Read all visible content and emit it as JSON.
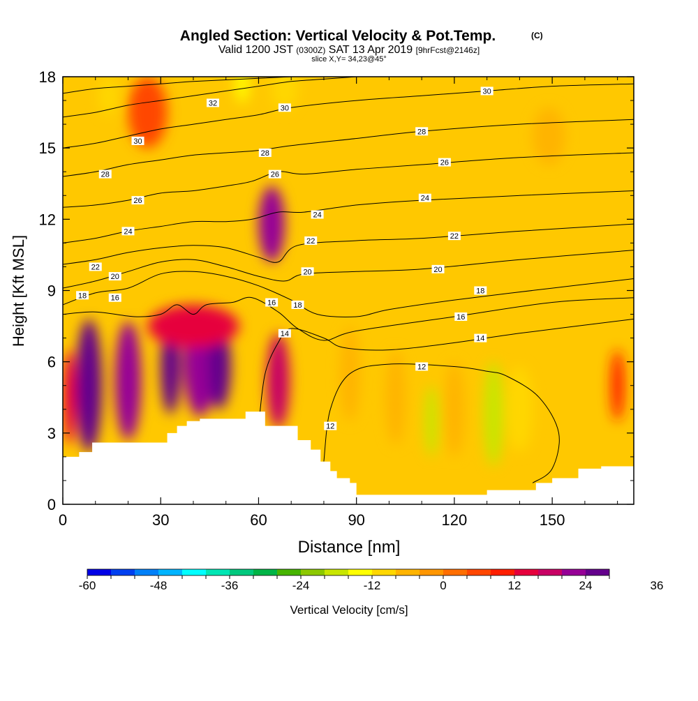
{
  "chart_data": {
    "type": "heatmap",
    "title": "Angled Section: Vertical Velocity & Pot.Temp.",
    "title_units": "(C)",
    "subtitle_parts": [
      "Valid 1200 JST ",
      "(0300Z)",
      " SAT 13 Apr 2019 ",
      "[9hrFcst@2146z]"
    ],
    "slice_label": "slice X,Y= 34,23@45°",
    "xlabel": "Distance [nm]",
    "ylabel": "Height [Kft MSL]",
    "xlim": [
      0,
      175
    ],
    "ylim": [
      0,
      18
    ],
    "xticks": [
      0,
      30,
      60,
      90,
      120,
      150
    ],
    "yticks": [
      0,
      3,
      6,
      9,
      12,
      15,
      18
    ],
    "colorbar": {
      "label": "Vertical Velocity [cm/s]",
      "min": -60,
      "max": 36,
      "step": 4,
      "tick_labels": [
        "-60",
        "-48",
        "-36",
        "-24",
        "-12",
        "0",
        "12",
        "24",
        "36"
      ],
      "colors": [
        "#0000e6",
        "#0040f0",
        "#0080f8",
        "#00b4ff",
        "#00ffff",
        "#00e6b4",
        "#00c87d",
        "#00b446",
        "#46b400",
        "#8cc800",
        "#c8e600",
        "#ffff00",
        "#ffd700",
        "#ffb400",
        "#ff9600",
        "#ff6e00",
        "#ff4600",
        "#ff1e00",
        "#e6003c",
        "#c80064",
        "#960096",
        "#64008c"
      ]
    },
    "terrain": [
      [
        0,
        2.0
      ],
      [
        5,
        2.2
      ],
      [
        9,
        2.6
      ],
      [
        20,
        2.6
      ],
      [
        30,
        2.6
      ],
      [
        32,
        3.0
      ],
      [
        35,
        3.3
      ],
      [
        38,
        3.5
      ],
      [
        42,
        3.6
      ],
      [
        52,
        3.6
      ],
      [
        56,
        3.9
      ],
      [
        61,
        3.9
      ],
      [
        62,
        3.3
      ],
      [
        71,
        3.3
      ],
      [
        72,
        2.7
      ],
      [
        76,
        2.3
      ],
      [
        79,
        1.8
      ],
      [
        82,
        1.4
      ],
      [
        84,
        1.1
      ],
      [
        88,
        0.9
      ],
      [
        90,
        0.4
      ],
      [
        100,
        0.4
      ],
      [
        120,
        0.4
      ],
      [
        130,
        0.6
      ],
      [
        142,
        0.6
      ],
      [
        145,
        0.9
      ],
      [
        150,
        1.1
      ],
      [
        158,
        1.5
      ],
      [
        165,
        1.6
      ],
      [
        175,
        1.6
      ]
    ],
    "vertical_velocity_blobs": [
      {
        "x": 8,
        "y": 5.0,
        "rx": 4,
        "ry": 2.8,
        "value": 24
      },
      {
        "x": 20,
        "y": 5.2,
        "rx": 4,
        "ry": 2.5,
        "value": 20
      },
      {
        "x": 2,
        "y": 4.5,
        "rx": 2,
        "ry": 2.0,
        "value": 12
      },
      {
        "x": 33,
        "y": 5.8,
        "rx": 3,
        "ry": 2.0,
        "value": 34
      },
      {
        "x": 42,
        "y": 6.0,
        "rx": 5,
        "ry": 2.3,
        "value": 20
      },
      {
        "x": 48,
        "y": 5.8,
        "rx": 3.5,
        "ry": 1.8,
        "value": 34
      },
      {
        "x": 40,
        "y": 7.5,
        "rx": 14,
        "ry": 0.9,
        "value": 14
      },
      {
        "x": 66,
        "y": 5.2,
        "rx": 3.5,
        "ry": 2.0,
        "value": 18
      },
      {
        "x": 64,
        "y": 11.8,
        "rx": 4,
        "ry": 1.6,
        "value": 20
      },
      {
        "x": 26,
        "y": 16.5,
        "rx": 6,
        "ry": 1.5,
        "value": 6
      },
      {
        "x": 14,
        "y": 17.2,
        "rx": 3,
        "ry": 0.8,
        "value": -10
      },
      {
        "x": 55,
        "y": 17.7,
        "rx": 2,
        "ry": 0.8,
        "value": -16
      },
      {
        "x": 68,
        "y": 17.5,
        "rx": 4,
        "ry": 0.9,
        "value": -10
      },
      {
        "x": 88,
        "y": 5.5,
        "rx": 3,
        "ry": 2.0,
        "value": -8
      },
      {
        "x": 102,
        "y": 4.5,
        "rx": 3,
        "ry": 2.0,
        "value": -8
      },
      {
        "x": 113,
        "y": 3.5,
        "rx": 2,
        "ry": 1.5,
        "value": -18
      },
      {
        "x": 120,
        "y": 4.0,
        "rx": 3,
        "ry": 2.0,
        "value": -8
      },
      {
        "x": 132,
        "y": 3.8,
        "rx": 3,
        "ry": 2.2,
        "value": -18
      },
      {
        "x": 140,
        "y": 4.0,
        "rx": 4,
        "ry": 1.8,
        "value": -10
      },
      {
        "x": 149,
        "y": 15.5,
        "rx": 5,
        "ry": 1.2,
        "value": -8
      },
      {
        "x": 170,
        "y": 5.0,
        "rx": 2,
        "ry": 1.5,
        "value": 8
      }
    ],
    "theta_contours": [
      {
        "level": 12,
        "points": [
          [
            80,
            1.8
          ],
          [
            82,
            4.0
          ],
          [
            88,
            5.5
          ],
          [
            100,
            5.9
          ],
          [
            120,
            5.8
          ],
          [
            130,
            5.6
          ],
          [
            136,
            5.4
          ],
          [
            146,
            4.5
          ],
          [
            152,
            3.0
          ],
          [
            150,
            1.5
          ],
          [
            144,
            0.9
          ]
        ],
        "labels": [
          [
            82,
            3.3
          ],
          [
            110,
            5.8
          ]
        ]
      },
      {
        "level": 14,
        "points": [
          [
            60,
            3.3
          ],
          [
            62,
            5.5
          ],
          [
            66,
            6.8
          ],
          [
            70,
            7.4
          ],
          [
            80,
            7.0
          ],
          [
            86,
            6.6
          ],
          [
            100,
            6.5
          ],
          [
            120,
            6.8
          ],
          [
            140,
            7.2
          ],
          [
            175,
            7.8
          ]
        ],
        "labels": [
          [
            68,
            7.2
          ],
          [
            128,
            7.0
          ]
        ]
      },
      {
        "level": 16,
        "points": [
          [
            0,
            8.0
          ],
          [
            10,
            8.1
          ],
          [
            22,
            7.9
          ],
          [
            30,
            8.0
          ],
          [
            35,
            8.4
          ],
          [
            40,
            8.0
          ],
          [
            44,
            8.4
          ],
          [
            52,
            8.5
          ],
          [
            58,
            8.7
          ],
          [
            66,
            8.1
          ],
          [
            72,
            7.4
          ],
          [
            80,
            6.9
          ],
          [
            90,
            7.3
          ],
          [
            120,
            7.9
          ],
          [
            150,
            8.5
          ],
          [
            175,
            8.7
          ]
        ],
        "labels": [
          [
            16,
            8.7
          ],
          [
            64,
            8.5
          ],
          [
            122,
            7.9
          ]
        ]
      },
      {
        "level": 18,
        "points": [
          [
            0,
            8.4
          ],
          [
            10,
            8.9
          ],
          [
            20,
            9.1
          ],
          [
            30,
            9.7
          ],
          [
            40,
            9.8
          ],
          [
            50,
            9.6
          ],
          [
            60,
            9.2
          ],
          [
            70,
            8.6
          ],
          [
            78,
            8.0
          ],
          [
            90,
            7.9
          ],
          [
            100,
            8.2
          ],
          [
            120,
            8.6
          ],
          [
            150,
            9.1
          ],
          [
            175,
            9.5
          ]
        ],
        "labels": [
          [
            6,
            8.8
          ],
          [
            72,
            8.4
          ],
          [
            128,
            9.0
          ]
        ]
      },
      {
        "level": 20,
        "points": [
          [
            0,
            9.1
          ],
          [
            10,
            9.4
          ],
          [
            20,
            9.8
          ],
          [
            30,
            10.2
          ],
          [
            40,
            10.3
          ],
          [
            50,
            10.0
          ],
          [
            60,
            9.6
          ],
          [
            68,
            9.4
          ],
          [
            74,
            9.7
          ],
          [
            90,
            9.8
          ],
          [
            110,
            9.9
          ],
          [
            140,
            10.3
          ],
          [
            175,
            10.7
          ]
        ],
        "labels": [
          [
            16,
            9.6
          ],
          [
            75,
            9.8
          ],
          [
            115,
            9.9
          ]
        ]
      },
      {
        "level": 22,
        "points": [
          [
            0,
            10.1
          ],
          [
            10,
            10.3
          ],
          [
            20,
            10.6
          ],
          [
            30,
            10.8
          ],
          [
            40,
            10.9
          ],
          [
            50,
            10.8
          ],
          [
            60,
            10.4
          ],
          [
            66,
            10.2
          ],
          [
            72,
            10.9
          ],
          [
            90,
            11.1
          ],
          [
            110,
            11.2
          ],
          [
            140,
            11.5
          ],
          [
            175,
            11.8
          ]
        ],
        "labels": [
          [
            10,
            10.0
          ],
          [
            76,
            11.1
          ],
          [
            120,
            11.3
          ]
        ]
      },
      {
        "level": 24,
        "points": [
          [
            0,
            11.0
          ],
          [
            10,
            11.2
          ],
          [
            20,
            11.5
          ],
          [
            30,
            11.7
          ],
          [
            40,
            11.9
          ],
          [
            50,
            11.9
          ],
          [
            58,
            12.0
          ],
          [
            66,
            12.3
          ],
          [
            74,
            12.3
          ],
          [
            90,
            12.6
          ],
          [
            110,
            12.8
          ],
          [
            140,
            13.0
          ],
          [
            175,
            13.2
          ]
        ],
        "labels": [
          [
            20,
            11.5
          ],
          [
            78,
            12.2
          ],
          [
            111,
            12.9
          ]
        ]
      },
      {
        "level": 26,
        "points": [
          [
            0,
            12.5
          ],
          [
            10,
            12.6
          ],
          [
            20,
            12.8
          ],
          [
            30,
            13.1
          ],
          [
            40,
            13.2
          ],
          [
            50,
            13.4
          ],
          [
            58,
            13.6
          ],
          [
            66,
            14.0
          ],
          [
            74,
            13.9
          ],
          [
            90,
            14.1
          ],
          [
            110,
            14.3
          ],
          [
            140,
            14.6
          ],
          [
            175,
            14.8
          ]
        ],
        "labels": [
          [
            23,
            12.8
          ],
          [
            65,
            13.9
          ],
          [
            117,
            14.4
          ]
        ]
      },
      {
        "level": 28,
        "points": [
          [
            0,
            13.8
          ],
          [
            10,
            14.0
          ],
          [
            20,
            14.3
          ],
          [
            30,
            14.5
          ],
          [
            40,
            14.7
          ],
          [
            50,
            14.8
          ],
          [
            60,
            14.9
          ],
          [
            70,
            15.1
          ],
          [
            90,
            15.4
          ],
          [
            110,
            15.7
          ],
          [
            140,
            16.0
          ],
          [
            175,
            16.2
          ]
        ],
        "labels": [
          [
            13,
            13.9
          ],
          [
            62,
            14.8
          ],
          [
            110,
            15.7
          ]
        ]
      },
      {
        "level": 30,
        "points": [
          [
            0,
            15.0
          ],
          [
            10,
            15.2
          ],
          [
            20,
            15.5
          ],
          [
            30,
            15.8
          ],
          [
            40,
            16.0
          ],
          [
            50,
            16.2
          ],
          [
            60,
            16.4
          ],
          [
            70,
            16.7
          ],
          [
            90,
            17.0
          ],
          [
            110,
            17.2
          ],
          [
            130,
            17.4
          ],
          [
            150,
            17.6
          ],
          [
            175,
            17.7
          ]
        ],
        "labels": [
          [
            23,
            15.3
          ],
          [
            68,
            16.7
          ],
          [
            130,
            17.4
          ]
        ]
      },
      {
        "level": 32,
        "points": [
          [
            0,
            16.3
          ],
          [
            10,
            16.5
          ],
          [
            20,
            16.8
          ],
          [
            30,
            17.0
          ],
          [
            40,
            17.2
          ],
          [
            50,
            17.4
          ],
          [
            60,
            17.6
          ],
          [
            70,
            17.8
          ],
          [
            80,
            17.9
          ],
          [
            90,
            18.0
          ]
        ],
        "labels": [
          [
            46,
            16.9
          ]
        ]
      },
      {
        "level": 34,
        "points": [
          [
            0,
            17.3
          ],
          [
            10,
            17.5
          ],
          [
            20,
            17.6
          ],
          [
            30,
            17.7
          ],
          [
            40,
            17.8
          ],
          [
            55,
            17.9
          ],
          [
            70,
            18.0
          ]
        ],
        "labels": []
      }
    ]
  }
}
